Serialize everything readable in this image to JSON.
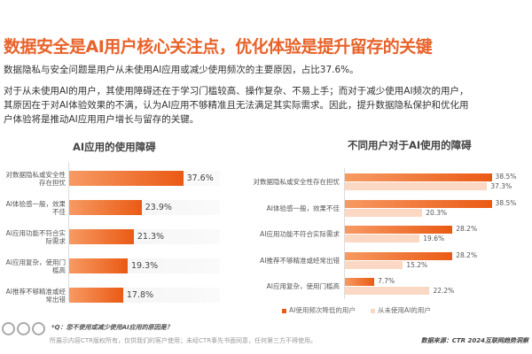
{
  "header": {
    "title": "数据安全是AI用户核心关注点，优化体验是提升留存的关键"
  },
  "body": {
    "para1": "数据隐私与安全问题是用户从未使用AI应用或减少使用频次的主要原因，占比37.6%。",
    "para2_lines": [
      "对于从未使用AI的用户，其使用障碍还在于学习门槛较高、操作复杂、不易上手；而对于减少使用AI频次的用户，",
      "其原因在于对AI体验效果的不满，认为AI应用不够精准且无法满足其实际需求。因此，提升数据隐私保护和优化用",
      "户体验将是推动AI应用用户增长与留存的关键。"
    ]
  },
  "chart_data": [
    {
      "type": "bar",
      "orientation": "horizontal",
      "title": "AI应用的使用障碍",
      "categories": [
        "对数据隐私或安全性存在担忧",
        "AI体验感一般，效果不佳",
        "AI应用功能不符合实际需求",
        "AI应用复杂，使用门槛高",
        "AI推荐不够精准或经常出错"
      ],
      "values": [
        37.6,
        23.9,
        21.3,
        19.3,
        17.8
      ],
      "value_labels": [
        "37.6%",
        "23.9%",
        "21.3%",
        "19.3%",
        "17.8%"
      ],
      "color": "#ea5a14"
    },
    {
      "type": "bar",
      "orientation": "horizontal",
      "title": "不同用户对于AI使用的障碍",
      "categories": [
        "对数据隐私或安全性存在担忧",
        "AI体验感一般，效果不佳",
        "AI应用功能不符合实际需求",
        "AI推荐不够精准或经常出错",
        "AI应用复杂，使用门槛高"
      ],
      "series": [
        {
          "name": "AI使用频次降低的用户",
          "values": [
            38.5,
            38.5,
            28.2,
            28.2,
            7.7
          ],
          "value_labels": [
            "38.5%",
            "38.5%",
            "28.2%",
            "28.2%",
            "7.7%"
          ],
          "color": "#ea5a14"
        },
        {
          "name": "从未使用AI的用户",
          "values": [
            37.3,
            20.3,
            19.6,
            15.2,
            22.2
          ],
          "value_labels": [
            "37.3%",
            "20.3%",
            "19.6%",
            "15.2%",
            "22.2%"
          ],
          "color": "#fbd8c4"
        }
      ],
      "legend": "bottom"
    }
  ],
  "footer": {
    "question": "*Q：您不使用或减少使用AI应用的原因是？",
    "copyright": "所展示内容CTR版权所有，仅供我们的客户使用；未经CTR事先书面同意，任何第三方不得使用。",
    "source": "数据来源：CTR 2024互联网趋势洞察"
  }
}
